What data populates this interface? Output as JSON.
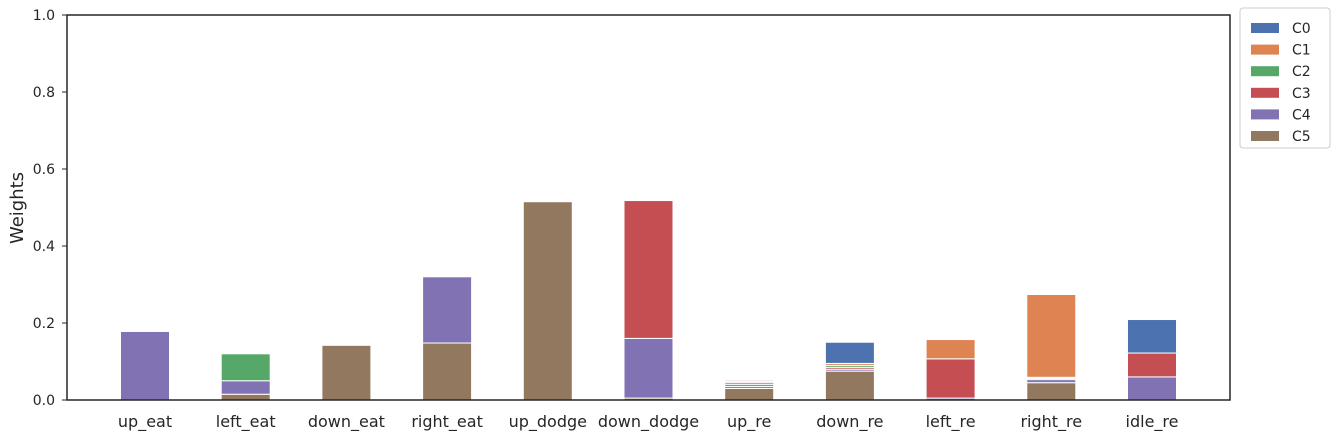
{
  "chart_data": {
    "type": "bar",
    "stacked": true,
    "categories": [
      "up_eat",
      "left_eat",
      "down_eat",
      "right_eat",
      "up_dodge",
      "down_dodge",
      "up_re",
      "down_re",
      "left_re",
      "right_re",
      "idle_re"
    ],
    "series": [
      {
        "name": "C5",
        "color": "#937860",
        "values": [
          0.0,
          0.015,
          0.142,
          0.148,
          0.515,
          0.005,
          0.03,
          0.075,
          0.0,
          0.045,
          0.0
        ]
      },
      {
        "name": "C4",
        "color": "#8172b3",
        "values": [
          0.178,
          0.035,
          0.0,
          0.172,
          0.0,
          0.155,
          0.005,
          0.005,
          0.005,
          0.008,
          0.06
        ]
      },
      {
        "name": "C3",
        "color": "#c44e52",
        "values": [
          0.0,
          0.0,
          0.0,
          0.0,
          0.0,
          0.358,
          0.005,
          0.005,
          0.102,
          0.003,
          0.062
        ]
      },
      {
        "name": "C2",
        "color": "#55a868",
        "values": [
          0.0,
          0.07,
          0.0,
          0.0,
          0.0,
          0.0,
          0.005,
          0.005,
          0.0,
          0.003,
          0.0
        ]
      },
      {
        "name": "C1",
        "color": "#dd8452",
        "values": [
          0.0,
          0.0,
          0.0,
          0.0,
          0.0,
          0.0,
          0.003,
          0.005,
          0.05,
          0.215,
          0.0
        ]
      },
      {
        "name": "C0",
        "color": "#4c72b0",
        "values": [
          0.0,
          0.0,
          0.0,
          0.0,
          0.0,
          0.0,
          0.003,
          0.055,
          0.0,
          0.0,
          0.087
        ]
      }
    ],
    "legend_order": [
      "C0",
      "C1",
      "C2",
      "C3",
      "C4",
      "C5"
    ],
    "ylabel": "Weights",
    "xlabel": "",
    "title": "",
    "ylim": [
      0,
      1
    ],
    "yticks": [
      "0.0",
      "0.2",
      "0.4",
      "0.6",
      "0.8",
      "1.0"
    ],
    "grid": false,
    "legend_position": "outside-top-right"
  }
}
